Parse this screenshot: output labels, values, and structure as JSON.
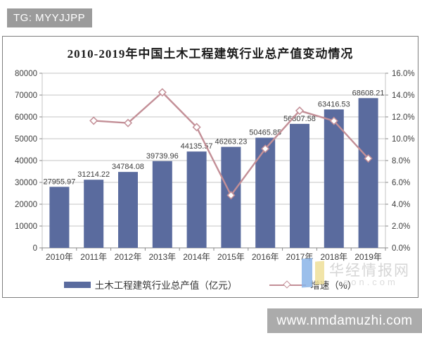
{
  "badge": {
    "text": "TG: MYYJJPP"
  },
  "bottom_bar": {
    "url": "www.nmdamuzhi.com"
  },
  "watermark": {
    "site_name": "华经情报网",
    "domain_text": "aon.com",
    "logo_blue": "#8ab4e8",
    "logo_yellow": "#efe099"
  },
  "chart_data": {
    "type": "combo",
    "title": "2010-2019年中国土木工程建筑行业总产值变动情况",
    "categories": [
      "2010年",
      "2011年",
      "2012年",
      "2013年",
      "2014年",
      "2015年",
      "2016年",
      "2017年",
      "2018年",
      "2019年"
    ],
    "series": [
      {
        "name": "土木工程建筑行业总产值（亿元）",
        "type": "bar",
        "axis": "left",
        "color": "#5a6b9e",
        "values": [
          27955.97,
          31214.22,
          34784.08,
          39739.96,
          44135.57,
          46263.23,
          50465.85,
          56807.58,
          63416.53,
          68608.21
        ],
        "data_labels": [
          "27955.97",
          "31214.22",
          "34784.08",
          "39739.96",
          "44135.57",
          "46263.23",
          "50465.85",
          "56807.58",
          "63416.53",
          "68608.21"
        ]
      },
      {
        "name": "增速（%）",
        "type": "line",
        "axis": "right",
        "color": "#c38f97",
        "marker": "diamond",
        "values": [
          null,
          11.65,
          11.44,
          14.25,
          11.06,
          4.82,
          9.08,
          12.57,
          11.63,
          8.19
        ]
      }
    ],
    "left_axis": {
      "min": 0,
      "max": 80000,
      "step": 10000,
      "ticks": [
        "0",
        "10000",
        "20000",
        "30000",
        "40000",
        "50000",
        "60000",
        "70000",
        "80000"
      ]
    },
    "right_axis": {
      "min": 0,
      "max": 16,
      "step": 2,
      "ticks": [
        "0.0%",
        "2.0%",
        "4.0%",
        "6.0%",
        "8.0%",
        "10.0%",
        "12.0%",
        "14.0%",
        "16.0%"
      ]
    },
    "grid": true,
    "legend_position": "bottom",
    "colors": {
      "grid": "#c6c6c6",
      "axis": "#8a8a8a",
      "text": "#3d3d3d"
    }
  }
}
